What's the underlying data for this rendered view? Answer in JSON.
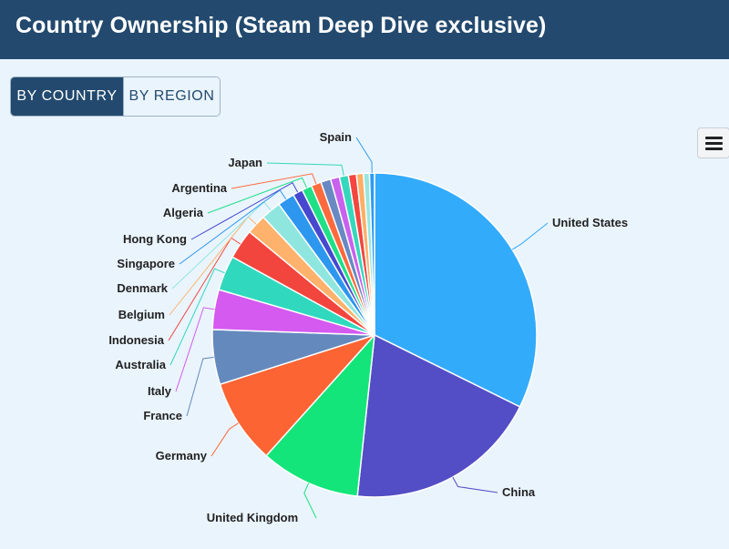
{
  "header": {
    "title": "Country Ownership (Steam Deep Dive exclusive)"
  },
  "toggle": {
    "by_country": "BY COUNTRY",
    "by_region": "BY REGION"
  },
  "menu": {
    "icon": "hamburger-menu-icon"
  },
  "chart_data": {
    "type": "pie",
    "title": "",
    "legend": "none",
    "slices": [
      {
        "name": "United States",
        "value": 32.5,
        "color": "#33abfb",
        "labeled": true
      },
      {
        "name": "China",
        "value": 19.5,
        "color": "#534ec5",
        "labeled": true
      },
      {
        "name": "United Kingdom",
        "value": 10.0,
        "color": "#13e57a",
        "labeled": true
      },
      {
        "name": "Germany",
        "value": 8.5,
        "color": "#fc6434",
        "labeled": true
      },
      {
        "name": "France",
        "value": 5.5,
        "color": "#6489bd",
        "labeled": true
      },
      {
        "name": "Italy",
        "value": 4.0,
        "color": "#d45af0",
        "labeled": true
      },
      {
        "name": "Australia",
        "value": 3.5,
        "color": "#30d9bd",
        "labeled": true
      },
      {
        "name": "Indonesia",
        "value": 3.0,
        "color": "#f2453e",
        "labeled": true
      },
      {
        "name": "Belgium",
        "value": 2.0,
        "color": "#ffb26b",
        "labeled": true
      },
      {
        "name": "Denmark",
        "value": 2.0,
        "color": "#8fe6de",
        "labeled": true
      },
      {
        "name": "Singapore",
        "value": 1.7,
        "color": "#2d97f0",
        "labeled": true
      },
      {
        "name": "Hong Kong",
        "value": 1.0,
        "color": "#4748cf",
        "labeled": true
      },
      {
        "name": "Algeria",
        "value": 1.0,
        "color": "#1fe087",
        "labeled": true
      },
      {
        "name": "Argentina",
        "value": 1.0,
        "color": "#fd6a3e",
        "labeled": true
      },
      {
        "name": "",
        "value": 1.0,
        "color": "#6989c3",
        "labeled": false
      },
      {
        "name": "",
        "value": 0.9,
        "color": "#c961ef",
        "labeled": false
      },
      {
        "name": "Japan",
        "value": 0.9,
        "color": "#35d8bd",
        "labeled": true
      },
      {
        "name": "",
        "value": 0.8,
        "color": "#f4453f",
        "labeled": false
      },
      {
        "name": "",
        "value": 0.7,
        "color": "#ffae66",
        "labeled": false
      },
      {
        "name": "",
        "value": 0.6,
        "color": "#98e6df",
        "labeled": false
      },
      {
        "name": "Spain",
        "value": 0.5,
        "color": "#2d9bf0",
        "labeled": true
      }
    ]
  }
}
